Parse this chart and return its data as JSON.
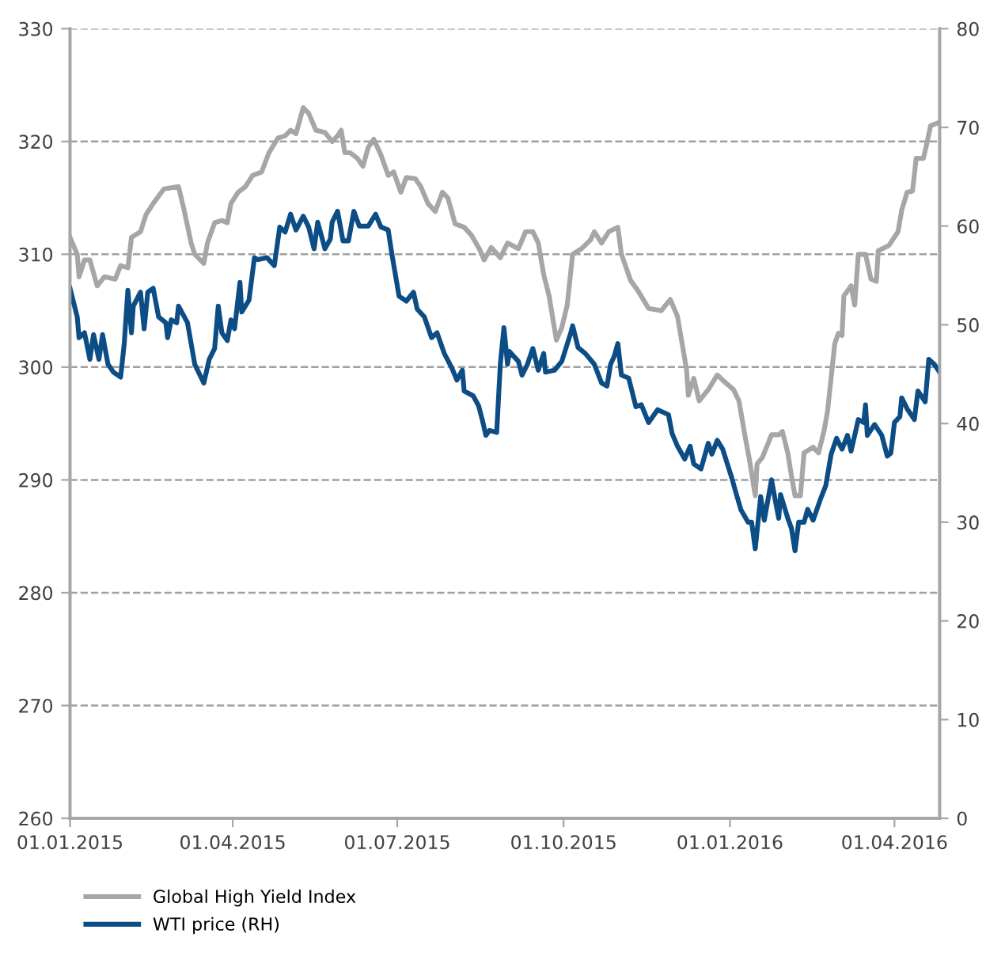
{
  "chart_data": {
    "type": "line",
    "series": [
      {
        "name": "Global High Yield Index",
        "color": "#a6a6a6",
        "x": [
          "2015-01-01",
          "2015-01-05",
          "2015-01-06",
          "2015-01-09",
          "2015-01-12",
          "2015-01-16",
          "2015-01-20",
          "2015-01-26",
          "2015-01-29",
          "2015-02-02",
          "2015-02-04",
          "2015-02-09",
          "2015-02-12",
          "2015-02-16",
          "2015-02-22",
          "2015-03-02",
          "2015-03-05",
          "2015-03-07",
          "2015-03-09",
          "2015-03-11",
          "2015-03-16",
          "2015-03-18",
          "2015-03-22",
          "2015-03-26",
          "2015-03-29",
          "2015-03-31",
          "2015-04-04",
          "2015-04-08",
          "2015-04-12",
          "2015-04-17",
          "2015-04-21",
          "2015-04-26",
          "2015-04-30",
          "2015-05-03",
          "2015-05-06",
          "2015-05-10",
          "2015-05-13",
          "2015-05-17",
          "2015-05-22",
          "2015-05-26",
          "2015-05-29",
          "2015-05-31",
          "2015-06-02",
          "2015-06-05",
          "2015-06-09",
          "2015-06-12",
          "2015-06-15",
          "2015-06-18",
          "2015-06-22",
          "2015-06-26",
          "2015-06-29",
          "2015-07-03",
          "2015-07-06",
          "2015-07-11",
          "2015-07-14",
          "2015-07-18",
          "2015-07-22",
          "2015-07-26",
          "2015-07-29",
          "2015-08-02",
          "2015-08-07",
          "2015-08-11",
          "2015-08-16",
          "2015-08-18",
          "2015-08-22",
          "2015-08-27",
          "2015-08-31",
          "2015-09-06",
          "2015-09-10",
          "2015-09-14",
          "2015-09-17",
          "2015-09-20",
          "2015-09-23",
          "2015-09-27",
          "2015-09-30",
          "2015-10-03",
          "2015-10-06",
          "2015-10-11",
          "2015-10-16",
          "2015-10-18",
          "2015-10-22",
          "2015-10-26",
          "2015-10-31",
          "2015-11-02",
          "2015-11-07",
          "2015-11-11",
          "2015-11-17",
          "2015-11-24",
          "2015-11-29",
          "2015-12-03",
          "2015-12-05",
          "2015-12-08",
          "2015-12-09",
          "2015-12-12",
          "2015-12-15",
          "2015-12-20",
          "2015-12-25",
          "2015-12-29",
          "2016-01-03",
          "2016-01-06",
          "2016-01-09",
          "2016-01-12",
          "2016-01-15",
          "2016-01-16",
          "2016-01-19",
          "2016-01-24",
          "2016-01-28",
          "2016-01-30",
          "2016-02-02",
          "2016-02-04",
          "2016-02-06",
          "2016-02-09",
          "2016-02-11",
          "2016-02-16",
          "2016-02-19",
          "2016-02-22",
          "2016-02-24",
          "2016-02-28",
          "2016-03-01",
          "2016-03-03",
          "2016-03-04",
          "2016-03-08",
          "2016-03-10",
          "2016-03-12",
          "2016-03-16",
          "2016-03-19",
          "2016-03-22",
          "2016-03-23",
          "2016-03-29",
          "2016-04-03",
          "2016-04-05",
          "2016-04-08",
          "2016-04-11",
          "2016-04-13",
          "2016-04-17",
          "2016-04-19",
          "2016-04-21",
          "2016-04-26"
        ],
        "values": [
          311.5,
          310,
          308,
          309.5,
          309.5,
          307.2,
          308,
          307.8,
          309,
          308.8,
          311.5,
          312,
          313.5,
          314.5,
          315.8,
          316,
          314,
          312.5,
          311,
          310,
          309.2,
          311,
          312.8,
          313,
          312.8,
          314.5,
          315.5,
          316,
          317,
          317.3,
          319,
          320.3,
          320.5,
          321,
          320.7,
          323,
          322.5,
          321,
          320.8,
          320,
          320.5,
          321,
          319,
          319,
          318.5,
          317.8,
          319.5,
          320.2,
          318.8,
          317,
          317.3,
          315.5,
          316.8,
          316.7,
          316,
          314.5,
          313.8,
          315.5,
          315,
          312.7,
          312.4,
          311.7,
          310.3,
          309.5,
          310.6,
          309.7,
          311,
          310.5,
          312,
          312,
          311,
          308.2,
          306.3,
          302.4,
          303.5,
          305.5,
          310,
          310.5,
          311.3,
          312,
          311,
          312,
          312.4,
          310,
          307.7,
          306.8,
          305.2,
          305,
          306,
          304.5,
          302.6,
          299.8,
          297.5,
          299,
          297,
          298,
          299.3,
          298.7,
          298,
          297,
          294.2,
          291.6,
          288.6,
          291.4,
          292,
          294,
          294,
          294.3,
          292.4,
          290.4,
          288.6,
          288.6,
          292.4,
          292.9,
          292.4,
          294.3,
          296.1,
          302.1,
          303,
          302.8,
          306.3,
          307.2,
          305.5,
          310,
          310,
          307.8,
          307.6,
          310.3,
          310.8,
          312,
          313.9,
          315.5,
          315.6,
          318.5,
          318.5,
          319.9,
          321.4,
          321.7
        ]
      },
      {
        "name": "WTI price (RH)",
        "color": "#0d4d85",
        "axis": "y2",
        "x": [
          "2015-01-01",
          "2015-01-05",
          "2015-01-06",
          "2015-01-09",
          "2015-01-12",
          "2015-01-14",
          "2015-01-17",
          "2015-01-19",
          "2015-01-22",
          "2015-01-25",
          "2015-01-29",
          "2015-01-31",
          "2015-02-02",
          "2015-02-04",
          "2015-02-05",
          "2015-02-09",
          "2015-02-11",
          "2015-02-13",
          "2015-02-16",
          "2015-02-19",
          "2015-02-23",
          "2015-02-24",
          "2015-02-26",
          "2015-03-01",
          "2015-03-02",
          "2015-03-07",
          "2015-03-11",
          "2015-03-16",
          "2015-03-19",
          "2015-03-22",
          "2015-03-24",
          "2015-03-26",
          "2015-03-29",
          "2015-03-31",
          "2015-04-02",
          "2015-04-05",
          "2015-04-06",
          "2015-04-10",
          "2015-04-13",
          "2015-04-15",
          "2015-04-20",
          "2015-04-24",
          "2015-04-27",
          "2015-04-30",
          "2015-05-03",
          "2015-05-06",
          "2015-05-10",
          "2015-05-13",
          "2015-05-16",
          "2015-05-18",
          "2015-05-22",
          "2015-05-25",
          "2015-05-26",
          "2015-05-29",
          "2015-06-01",
          "2015-06-04",
          "2015-06-07",
          "2015-06-10",
          "2015-06-15",
          "2015-06-19",
          "2015-06-22",
          "2015-06-26",
          "2015-06-28",
          "2015-07-02",
          "2015-07-06",
          "2015-07-10",
          "2015-07-12",
          "2015-07-16",
          "2015-07-20",
          "2015-07-23",
          "2015-07-27",
          "2015-07-31",
          "2015-08-03",
          "2015-08-06",
          "2015-08-07",
          "2015-08-12",
          "2015-08-15",
          "2015-08-17",
          "2015-08-19",
          "2015-08-21",
          "2015-08-25",
          "2015-08-27",
          "2015-08-29",
          "2015-08-31",
          "2015-09-01",
          "2015-09-06",
          "2015-09-08",
          "2015-09-11",
          "2015-09-14",
          "2015-09-17",
          "2015-09-20",
          "2015-09-21",
          "2015-09-26",
          "2015-09-30",
          "2015-10-05",
          "2015-10-06",
          "2015-10-09",
          "2015-10-13",
          "2015-10-18",
          "2015-10-22",
          "2015-10-25",
          "2015-10-27",
          "2015-10-29",
          "2015-10-31",
          "2015-11-02",
          "2015-11-06",
          "2015-11-10",
          "2015-11-13",
          "2015-11-17",
          "2015-11-22",
          "2015-11-28",
          "2015-11-30",
          "2015-12-03",
          "2015-12-07",
          "2015-12-10",
          "2015-12-12",
          "2015-12-16",
          "2015-12-20",
          "2015-12-22",
          "2015-12-25",
          "2015-12-28",
          "2016-01-02",
          "2016-01-04",
          "2016-01-07",
          "2016-01-11",
          "2016-01-13",
          "2016-01-15",
          "2016-01-18",
          "2016-01-20",
          "2016-01-24",
          "2016-01-26",
          "2016-01-28",
          "2016-01-29",
          "2016-02-02",
          "2016-02-04",
          "2016-02-06",
          "2016-02-08",
          "2016-02-11",
          "2016-02-13",
          "2016-02-16",
          "2016-02-20",
          "2016-02-23",
          "2016-02-26",
          "2016-02-29",
          "2016-03-03",
          "2016-03-06",
          "2016-03-08",
          "2016-03-12",
          "2016-03-15",
          "2016-03-16",
          "2016-03-17",
          "2016-03-21",
          "2016-03-25",
          "2016-03-28",
          "2016-03-30",
          "2016-04-01",
          "2016-04-04",
          "2016-04-05",
          "2016-04-08",
          "2016-04-12",
          "2016-04-14",
          "2016-04-18",
          "2016-04-20",
          "2016-04-23",
          "2016-04-26"
        ],
        "values": [
          53.7,
          50.8,
          48.7,
          49.2,
          46.5,
          49,
          46.5,
          49,
          46,
          45.2,
          44.7,
          48.1,
          53.5,
          49.2,
          51.9,
          53.3,
          49.6,
          53.3,
          53.7,
          50.8,
          50.2,
          48.7,
          50.5,
          50.2,
          51.9,
          50.2,
          46,
          44.1,
          46.5,
          47.6,
          51.9,
          49.2,
          48.4,
          50.5,
          49.6,
          54.3,
          51.3,
          52.5,
          56.8,
          56.6,
          56.8,
          56,
          59.9,
          59.4,
          61.2,
          59.6,
          61,
          59.9,
          57.7,
          60.4,
          57.7,
          58.7,
          60.4,
          61.5,
          58.5,
          58.5,
          61.5,
          60,
          60,
          61.2,
          59.9,
          59.6,
          57.2,
          52.9,
          52.4,
          53.3,
          51.6,
          50.8,
          48.7,
          49.2,
          47.1,
          45.7,
          44.4,
          45.4,
          43.3,
          42.8,
          41.8,
          40.4,
          38.8,
          39.3,
          39.1,
          46,
          49.7,
          46,
          47.3,
          46.3,
          44.9,
          46,
          47.6,
          45.4,
          47.1,
          45.2,
          45.4,
          46.3,
          49.2,
          49.9,
          47.7,
          47.1,
          46,
          44.1,
          43.8,
          46,
          46.8,
          48.1,
          44.9,
          44.6,
          41.7,
          41.9,
          40.1,
          41.4,
          40.9,
          39,
          37.7,
          36.4,
          37.7,
          35.9,
          35.4,
          38,
          36.9,
          38.3,
          37.4,
          34.5,
          33.2,
          31.3,
          30,
          30,
          27.3,
          32.6,
          30.2,
          34.3,
          32.3,
          30.4,
          32.8,
          30.4,
          29.4,
          27.1,
          30,
          30,
          31.3,
          30.2,
          32.3,
          33.7,
          36.9,
          38.5,
          37.4,
          38.8,
          37.2,
          40.4,
          40.1,
          41.9,
          38.8,
          39.9,
          38.8,
          36.7,
          37,
          40.1,
          40.7,
          42.6,
          41.5,
          40.4,
          43.3,
          42.2,
          46.5,
          46,
          45.2
        ]
      }
    ],
    "xlim": [
      "2015-01-01",
      "2016-04-26"
    ],
    "xticks": [
      {
        "value": "2015-01-01",
        "label": "01.01.2015"
      },
      {
        "value": "2015-04-01",
        "label": "01.04.2015"
      },
      {
        "value": "2015-07-01",
        "label": "01.07.2015"
      },
      {
        "value": "2015-10-01",
        "label": "01.10.2015"
      },
      {
        "value": "2016-01-01",
        "label": "01.01.2016"
      },
      {
        "value": "2016-04-01",
        "label": "01.04.2016"
      }
    ],
    "ylim": [
      260,
      330
    ],
    "yticks": [
      260,
      270,
      280,
      290,
      300,
      310,
      320,
      330
    ],
    "y2lim": [
      0,
      80
    ],
    "y2ticks": [
      0,
      10,
      20,
      30,
      40,
      50,
      60,
      70,
      80
    ],
    "grid": "y",
    "legend": "bottom left",
    "line_style": "solid",
    "marker": "none"
  }
}
